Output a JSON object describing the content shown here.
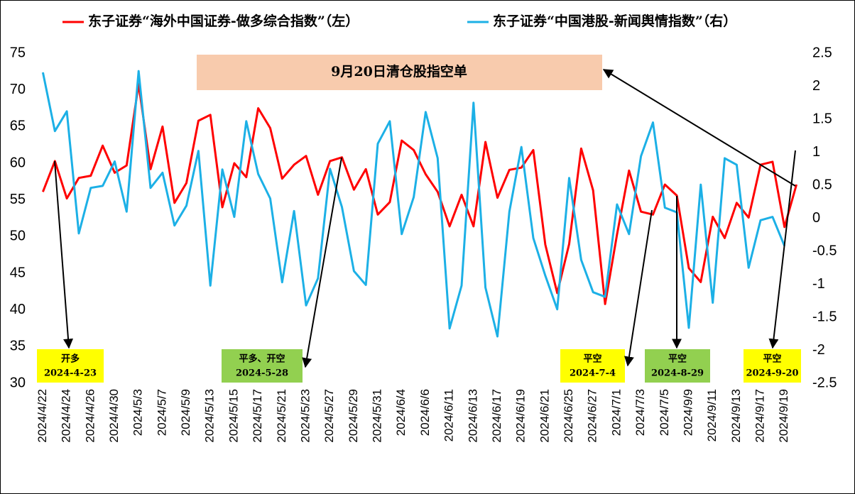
{
  "chart_data": {
    "type": "line",
    "categories": [
      "2024/4/22",
      null,
      "2024/4/24",
      null,
      "2024/4/26",
      null,
      "2024/4/30",
      null,
      "2024/5/3",
      null,
      "2024/5/7",
      null,
      "2024/5/9",
      null,
      "2024/5/13",
      null,
      "2024/5/15",
      null,
      "2024/5/17",
      null,
      "2024/5/21",
      null,
      "2024/5/23",
      null,
      "2024/5/27",
      null,
      "2024/5/29",
      null,
      "2024/5/31",
      null,
      "2024/6/4",
      null,
      "2024/6/6",
      null,
      "2024/6/11",
      null,
      "2024/6/13",
      null,
      "2024/6/17",
      null,
      "2024/6/19",
      null,
      "2024/6/21",
      null,
      "2024/6/25",
      null,
      "2024/6/27",
      null,
      "2024/7/1",
      null,
      "2024/7/3",
      null,
      "2024/7/5",
      null,
      "2024/9/9",
      null,
      "2024/9/11",
      null,
      "2024/9/13",
      null,
      "2024/9/17",
      null,
      "2024/9/19",
      null
    ],
    "series": [
      {
        "name": "东子证券“海外中国证券-做多综合指数”（左）",
        "color": "#ff0000",
        "axis": "y",
        "values": [
          56.1,
          60.3,
          55.2,
          58.0,
          58.3,
          62.4,
          58.7,
          59.7,
          70.8,
          59.2,
          65.0,
          54.6,
          57.3,
          65.8,
          66.6,
          54.0,
          60.0,
          58.1,
          67.5,
          64.8,
          57.9,
          59.8,
          61.0,
          55.7,
          60.3,
          60.8,
          56.4,
          59.2,
          53.0,
          54.7,
          63.1,
          61.8,
          58.5,
          56.1,
          51.4,
          55.7,
          51.4,
          62.9,
          55.3,
          59.1,
          59.4,
          61.8,
          48.9,
          42.3,
          49.0,
          62.0,
          56.3,
          40.8,
          50.3,
          59.0,
          53.4,
          53.0,
          57.1,
          55.6,
          45.7,
          43.8,
          52.7,
          49.8,
          54.6,
          52.6,
          59.8,
          60.2,
          51.3,
          57.1
        ]
      },
      {
        "name": "东子证券“中国港股-新闻舆情指数”（右）",
        "color": "#1cb0e6",
        "axis": "y2",
        "values": [
          2.21,
          1.32,
          1.62,
          -0.23,
          0.46,
          0.49,
          0.86,
          0.1,
          2.23,
          0.46,
          0.69,
          -0.11,
          0.19,
          1.02,
          -1.02,
          0.74,
          0.02,
          1.47,
          0.67,
          0.3,
          -0.97,
          0.11,
          -1.32,
          -0.91,
          0.75,
          0.17,
          -0.8,
          -1.01,
          1.13,
          1.47,
          -0.24,
          0.32,
          1.61,
          0.91,
          -1.67,
          -1.02,
          1.75,
          -1.05,
          -1.79,
          0.1,
          1.08,
          -0.3,
          -0.87,
          -1.38,
          0.61,
          -0.63,
          -1.12,
          -1.19,
          0.21,
          -0.24,
          0.94,
          1.45,
          0.16,
          0.09,
          -1.66,
          0.51,
          -1.28,
          0.91,
          0.81,
          -0.75,
          -0.03,
          0.02,
          -0.42,
          null
        ]
      }
    ],
    "ylim": [
      30,
      75
    ],
    "yticks": [
      30,
      35,
      40,
      45,
      50,
      55,
      60,
      65,
      70,
      75
    ],
    "y2lim": [
      -2.5,
      2.5
    ],
    "y2ticks": [
      -2.5,
      -2,
      -1.5,
      -1,
      -0.5,
      0,
      0.5,
      1,
      1.5,
      2,
      2.5
    ],
    "legend": "top",
    "note": {
      "text": "9月20日清仓股指空单",
      "color": "#f8cbad"
    },
    "annotations": [
      {
        "label": "开多",
        "date": "2024-4-23",
        "color": "#ffff00"
      },
      {
        "label": "平多、开空",
        "date": "2024-5-28",
        "color": "#92d050"
      },
      {
        "label": "平空",
        "date": "2024-7-4",
        "color": "#ffff00"
      },
      {
        "label": "平空",
        "date": "2024-8-29",
        "color": "#92d050"
      },
      {
        "label": "平空",
        "date": "2024-9-20",
        "color": "#ffff00"
      }
    ]
  }
}
